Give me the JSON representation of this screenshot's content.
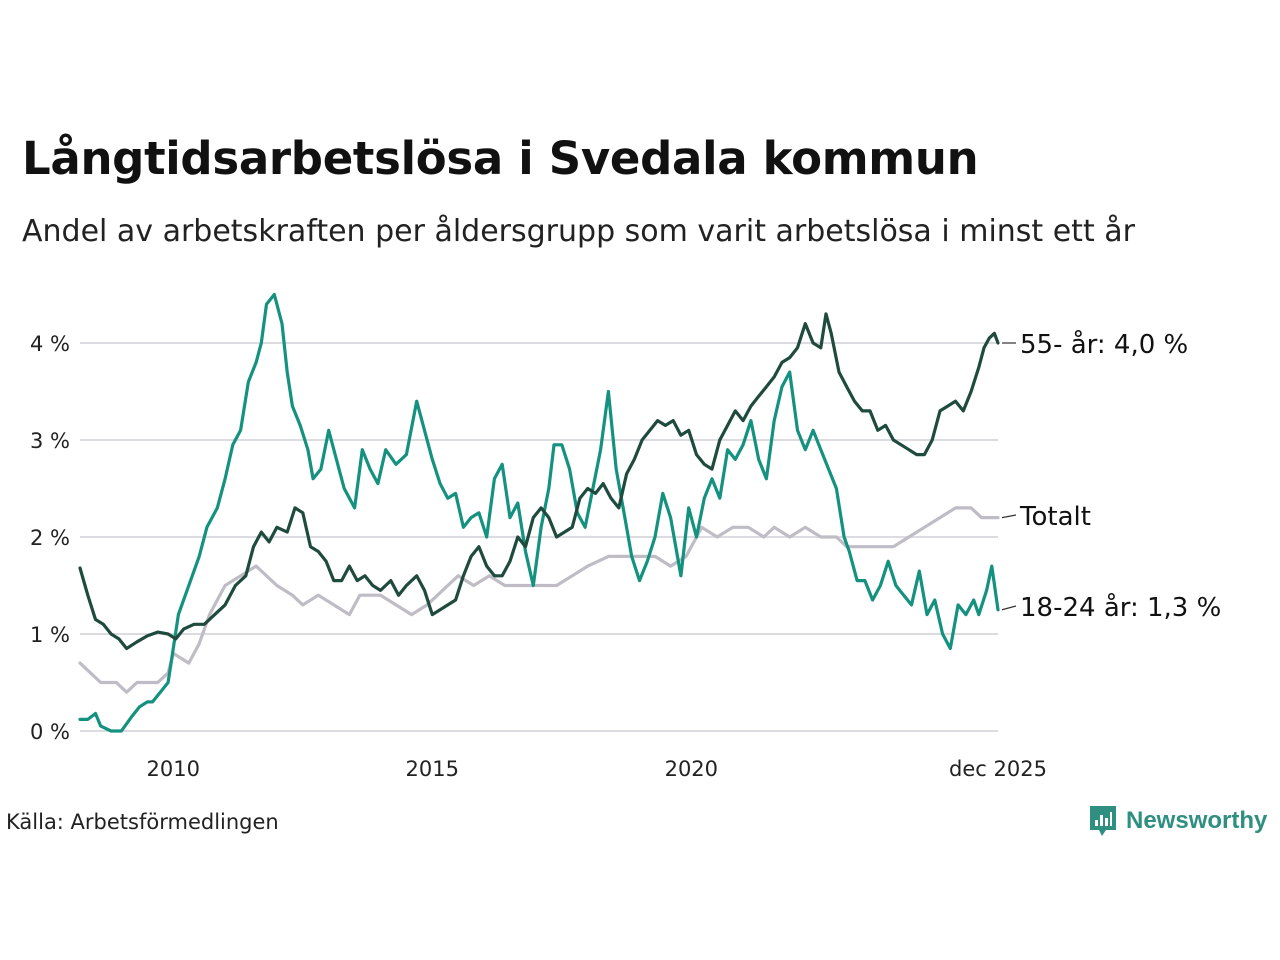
{
  "title": "Långtidsarbetslösa i Svedala kommun",
  "subtitle": "Andel av arbetskraften per åldersgrupp som varit arbetslösa i minst ett år",
  "source": "Källa: Arbetsförmedlingen",
  "brand": "Newsworthy",
  "colors": {
    "s55": "#1f4a3e",
    "s1824": "#14917f",
    "total": "#bfbcc6",
    "grid": "#dcdce0",
    "brand": "#2f8f80"
  },
  "chart_data": {
    "type": "line",
    "title": "Långtidsarbetslösa i Svedala kommun",
    "xlabel": "",
    "ylabel": "",
    "x_range": [
      2008.2,
      2025.92
    ],
    "ylim": [
      0,
      4.5
    ],
    "y_ticks": [
      0,
      1,
      2,
      3,
      4
    ],
    "y_tick_labels": [
      "0 %",
      "1 %",
      "2 %",
      "3 %",
      "4 %"
    ],
    "x_ticks": [
      2010,
      2015,
      2020,
      2025.92
    ],
    "x_tick_labels": [
      "2010",
      "2015",
      "2020",
      "dec 2025"
    ],
    "grid": true,
    "series": [
      {
        "name": "Totalt",
        "key": "total",
        "end_label": "Totalt",
        "points": [
          [
            2008.2,
            0.7
          ],
          [
            2008.4,
            0.6
          ],
          [
            2008.6,
            0.5
          ],
          [
            2008.9,
            0.5
          ],
          [
            2009.1,
            0.4
          ],
          [
            2009.3,
            0.5
          ],
          [
            2009.7,
            0.5
          ],
          [
            2009.9,
            0.6
          ],
          [
            2010.0,
            0.8
          ],
          [
            2010.3,
            0.7
          ],
          [
            2010.5,
            0.9
          ],
          [
            2010.7,
            1.2
          ],
          [
            2011.0,
            1.5
          ],
          [
            2011.3,
            1.6
          ],
          [
            2011.6,
            1.7
          ],
          [
            2011.8,
            1.6
          ],
          [
            2012.0,
            1.5
          ],
          [
            2012.3,
            1.4
          ],
          [
            2012.5,
            1.3
          ],
          [
            2012.8,
            1.4
          ],
          [
            2013.1,
            1.3
          ],
          [
            2013.4,
            1.2
          ],
          [
            2013.6,
            1.4
          ],
          [
            2014.0,
            1.4
          ],
          [
            2014.3,
            1.3
          ],
          [
            2014.6,
            1.2
          ],
          [
            2014.9,
            1.3
          ],
          [
            2015.1,
            1.4
          ],
          [
            2015.3,
            1.5
          ],
          [
            2015.5,
            1.6
          ],
          [
            2015.8,
            1.5
          ],
          [
            2016.1,
            1.6
          ],
          [
            2016.4,
            1.5
          ],
          [
            2016.7,
            1.5
          ],
          [
            2017.1,
            1.5
          ],
          [
            2017.4,
            1.5
          ],
          [
            2017.7,
            1.6
          ],
          [
            2018.0,
            1.7
          ],
          [
            2018.4,
            1.8
          ],
          [
            2018.7,
            1.8
          ],
          [
            2019.0,
            1.8
          ],
          [
            2019.3,
            1.8
          ],
          [
            2019.6,
            1.7
          ],
          [
            2019.9,
            1.8
          ],
          [
            2020.2,
            2.1
          ],
          [
            2020.5,
            2.0
          ],
          [
            2020.8,
            2.1
          ],
          [
            2021.1,
            2.1
          ],
          [
            2021.4,
            2.0
          ],
          [
            2021.6,
            2.1
          ],
          [
            2021.9,
            2.0
          ],
          [
            2022.2,
            2.1
          ],
          [
            2022.5,
            2.0
          ],
          [
            2022.8,
            2.0
          ],
          [
            2023.0,
            1.9
          ],
          [
            2023.3,
            1.9
          ],
          [
            2023.6,
            1.9
          ],
          [
            2023.9,
            1.9
          ],
          [
            2024.2,
            2.0
          ],
          [
            2024.5,
            2.1
          ],
          [
            2024.8,
            2.2
          ],
          [
            2025.1,
            2.3
          ],
          [
            2025.4,
            2.3
          ],
          [
            2025.6,
            2.2
          ],
          [
            2025.92,
            2.2
          ]
        ]
      },
      {
        "name": "18-24 år",
        "key": "s1824",
        "end_label": "18-24 år: 1,3 %",
        "points": [
          [
            2008.2,
            0.12
          ],
          [
            2008.35,
            0.12
          ],
          [
            2008.5,
            0.18
          ],
          [
            2008.6,
            0.05
          ],
          [
            2008.8,
            0.0
          ],
          [
            2009.0,
            0.0
          ],
          [
            2009.2,
            0.15
          ],
          [
            2009.35,
            0.25
          ],
          [
            2009.5,
            0.3
          ],
          [
            2009.6,
            0.3
          ],
          [
            2009.75,
            0.4
          ],
          [
            2009.9,
            0.5
          ],
          [
            2010.1,
            1.2
          ],
          [
            2010.3,
            1.5
          ],
          [
            2010.5,
            1.8
          ],
          [
            2010.65,
            2.1
          ],
          [
            2010.85,
            2.3
          ],
          [
            2011.0,
            2.6
          ],
          [
            2011.15,
            2.95
          ],
          [
            2011.3,
            3.1
          ],
          [
            2011.45,
            3.6
          ],
          [
            2011.6,
            3.8
          ],
          [
            2011.7,
            4.0
          ],
          [
            2011.8,
            4.4
          ],
          [
            2011.95,
            4.5
          ],
          [
            2012.1,
            4.2
          ],
          [
            2012.2,
            3.7
          ],
          [
            2012.3,
            3.35
          ],
          [
            2012.45,
            3.15
          ],
          [
            2012.6,
            2.9
          ],
          [
            2012.7,
            2.6
          ],
          [
            2012.85,
            2.7
          ],
          [
            2013.0,
            3.1
          ],
          [
            2013.15,
            2.8
          ],
          [
            2013.3,
            2.5
          ],
          [
            2013.5,
            2.3
          ],
          [
            2013.65,
            2.9
          ],
          [
            2013.8,
            2.7
          ],
          [
            2013.95,
            2.55
          ],
          [
            2014.1,
            2.9
          ],
          [
            2014.3,
            2.75
          ],
          [
            2014.5,
            2.85
          ],
          [
            2014.7,
            3.4
          ],
          [
            2014.85,
            3.1
          ],
          [
            2015.0,
            2.8
          ],
          [
            2015.15,
            2.55
          ],
          [
            2015.3,
            2.4
          ],
          [
            2015.45,
            2.45
          ],
          [
            2015.6,
            2.1
          ],
          [
            2015.75,
            2.2
          ],
          [
            2015.9,
            2.25
          ],
          [
            2016.05,
            2.0
          ],
          [
            2016.2,
            2.6
          ],
          [
            2016.35,
            2.75
          ],
          [
            2016.5,
            2.2
          ],
          [
            2016.65,
            2.35
          ],
          [
            2016.8,
            1.85
          ],
          [
            2016.95,
            1.5
          ],
          [
            2017.1,
            2.1
          ],
          [
            2017.25,
            2.5
          ],
          [
            2017.35,
            2.95
          ],
          [
            2017.5,
            2.95
          ],
          [
            2017.65,
            2.7
          ],
          [
            2017.8,
            2.25
          ],
          [
            2017.95,
            2.1
          ],
          [
            2018.1,
            2.5
          ],
          [
            2018.25,
            2.9
          ],
          [
            2018.4,
            3.5
          ],
          [
            2018.55,
            2.7
          ],
          [
            2018.7,
            2.25
          ],
          [
            2018.85,
            1.8
          ],
          [
            2019.0,
            1.55
          ],
          [
            2019.15,
            1.75
          ],
          [
            2019.3,
            2.0
          ],
          [
            2019.45,
            2.45
          ],
          [
            2019.6,
            2.2
          ],
          [
            2019.8,
            1.6
          ],
          [
            2019.95,
            2.3
          ],
          [
            2020.1,
            2.0
          ],
          [
            2020.25,
            2.4
          ],
          [
            2020.4,
            2.6
          ],
          [
            2020.55,
            2.4
          ],
          [
            2020.7,
            2.9
          ],
          [
            2020.85,
            2.8
          ],
          [
            2021.0,
            2.95
          ],
          [
            2021.15,
            3.2
          ],
          [
            2021.3,
            2.8
          ],
          [
            2021.45,
            2.6
          ],
          [
            2021.6,
            3.2
          ],
          [
            2021.75,
            3.55
          ],
          [
            2021.9,
            3.7
          ],
          [
            2022.05,
            3.1
          ],
          [
            2022.2,
            2.9
          ],
          [
            2022.35,
            3.1
          ],
          [
            2022.5,
            2.9
          ],
          [
            2022.65,
            2.7
          ],
          [
            2022.8,
            2.5
          ],
          [
            2022.95,
            2.0
          ],
          [
            2023.05,
            1.85
          ],
          [
            2023.2,
            1.55
          ],
          [
            2023.35,
            1.55
          ],
          [
            2023.5,
            1.35
          ],
          [
            2023.65,
            1.5
          ],
          [
            2023.8,
            1.75
          ],
          [
            2023.95,
            1.5
          ],
          [
            2024.1,
            1.4
          ],
          [
            2024.25,
            1.3
          ],
          [
            2024.4,
            1.65
          ],
          [
            2024.55,
            1.2
          ],
          [
            2024.7,
            1.35
          ],
          [
            2024.85,
            1.0
          ],
          [
            2025.0,
            0.85
          ],
          [
            2025.15,
            1.3
          ],
          [
            2025.3,
            1.2
          ],
          [
            2025.45,
            1.35
          ],
          [
            2025.55,
            1.2
          ],
          [
            2025.7,
            1.45
          ],
          [
            2025.8,
            1.7
          ],
          [
            2025.92,
            1.25
          ]
        ]
      },
      {
        "name": "55- år",
        "key": "s55",
        "end_label": "55- år: 4,0 %",
        "points": [
          [
            2008.2,
            1.68
          ],
          [
            2008.35,
            1.4
          ],
          [
            2008.5,
            1.15
          ],
          [
            2008.65,
            1.1
          ],
          [
            2008.8,
            1.0
          ],
          [
            2008.95,
            0.95
          ],
          [
            2009.1,
            0.85
          ],
          [
            2009.3,
            0.92
          ],
          [
            2009.5,
            0.98
          ],
          [
            2009.7,
            1.02
          ],
          [
            2009.9,
            1.0
          ],
          [
            2010.05,
            0.95
          ],
          [
            2010.2,
            1.05
          ],
          [
            2010.4,
            1.1
          ],
          [
            2010.6,
            1.1
          ],
          [
            2010.8,
            1.2
          ],
          [
            2011.0,
            1.3
          ],
          [
            2011.2,
            1.5
          ],
          [
            2011.4,
            1.6
          ],
          [
            2011.55,
            1.9
          ],
          [
            2011.7,
            2.05
          ],
          [
            2011.85,
            1.95
          ],
          [
            2012.0,
            2.1
          ],
          [
            2012.2,
            2.05
          ],
          [
            2012.35,
            2.3
          ],
          [
            2012.5,
            2.25
          ],
          [
            2012.65,
            1.9
          ],
          [
            2012.8,
            1.85
          ],
          [
            2012.95,
            1.75
          ],
          [
            2013.1,
            1.55
          ],
          [
            2013.25,
            1.55
          ],
          [
            2013.4,
            1.7
          ],
          [
            2013.55,
            1.55
          ],
          [
            2013.7,
            1.6
          ],
          [
            2013.85,
            1.5
          ],
          [
            2014.0,
            1.45
          ],
          [
            2014.2,
            1.55
          ],
          [
            2014.35,
            1.4
          ],
          [
            2014.5,
            1.5
          ],
          [
            2014.7,
            1.6
          ],
          [
            2014.85,
            1.45
          ],
          [
            2015.0,
            1.2
          ],
          [
            2015.15,
            1.25
          ],
          [
            2015.3,
            1.3
          ],
          [
            2015.45,
            1.35
          ],
          [
            2015.6,
            1.6
          ],
          [
            2015.75,
            1.8
          ],
          [
            2015.9,
            1.9
          ],
          [
            2016.05,
            1.7
          ],
          [
            2016.2,
            1.6
          ],
          [
            2016.35,
            1.6
          ],
          [
            2016.5,
            1.75
          ],
          [
            2016.65,
            2.0
          ],
          [
            2016.8,
            1.9
          ],
          [
            2016.95,
            2.2
          ],
          [
            2017.1,
            2.3
          ],
          [
            2017.25,
            2.2
          ],
          [
            2017.4,
            2.0
          ],
          [
            2017.55,
            2.05
          ],
          [
            2017.7,
            2.1
          ],
          [
            2017.85,
            2.4
          ],
          [
            2018.0,
            2.5
          ],
          [
            2018.15,
            2.45
          ],
          [
            2018.3,
            2.55
          ],
          [
            2018.45,
            2.4
          ],
          [
            2018.6,
            2.3
          ],
          [
            2018.75,
            2.65
          ],
          [
            2018.9,
            2.8
          ],
          [
            2019.05,
            3.0
          ],
          [
            2019.2,
            3.1
          ],
          [
            2019.35,
            3.2
          ],
          [
            2019.5,
            3.15
          ],
          [
            2019.65,
            3.2
          ],
          [
            2019.8,
            3.05
          ],
          [
            2019.95,
            3.1
          ],
          [
            2020.1,
            2.85
          ],
          [
            2020.25,
            2.75
          ],
          [
            2020.4,
            2.7
          ],
          [
            2020.55,
            3.0
          ],
          [
            2020.7,
            3.15
          ],
          [
            2020.85,
            3.3
          ],
          [
            2021.0,
            3.2
          ],
          [
            2021.15,
            3.35
          ],
          [
            2021.3,
            3.45
          ],
          [
            2021.45,
            3.55
          ],
          [
            2021.6,
            3.65
          ],
          [
            2021.75,
            3.8
          ],
          [
            2021.9,
            3.85
          ],
          [
            2022.05,
            3.95
          ],
          [
            2022.2,
            4.2
          ],
          [
            2022.35,
            4.0
          ],
          [
            2022.5,
            3.95
          ],
          [
            2022.6,
            4.3
          ],
          [
            2022.7,
            4.1
          ],
          [
            2022.85,
            3.7
          ],
          [
            2023.0,
            3.55
          ],
          [
            2023.15,
            3.4
          ],
          [
            2023.3,
            3.3
          ],
          [
            2023.45,
            3.3
          ],
          [
            2023.6,
            3.1
          ],
          [
            2023.75,
            3.15
          ],
          [
            2023.9,
            3.0
          ],
          [
            2024.05,
            2.95
          ],
          [
            2024.2,
            2.9
          ],
          [
            2024.35,
            2.85
          ],
          [
            2024.5,
            2.85
          ],
          [
            2024.65,
            3.0
          ],
          [
            2024.8,
            3.3
          ],
          [
            2024.95,
            3.35
          ],
          [
            2025.1,
            3.4
          ],
          [
            2025.25,
            3.3
          ],
          [
            2025.4,
            3.5
          ],
          [
            2025.55,
            3.75
          ],
          [
            2025.65,
            3.95
          ],
          [
            2025.75,
            4.05
          ],
          [
            2025.85,
            4.1
          ],
          [
            2025.92,
            4.0
          ]
        ]
      }
    ]
  }
}
